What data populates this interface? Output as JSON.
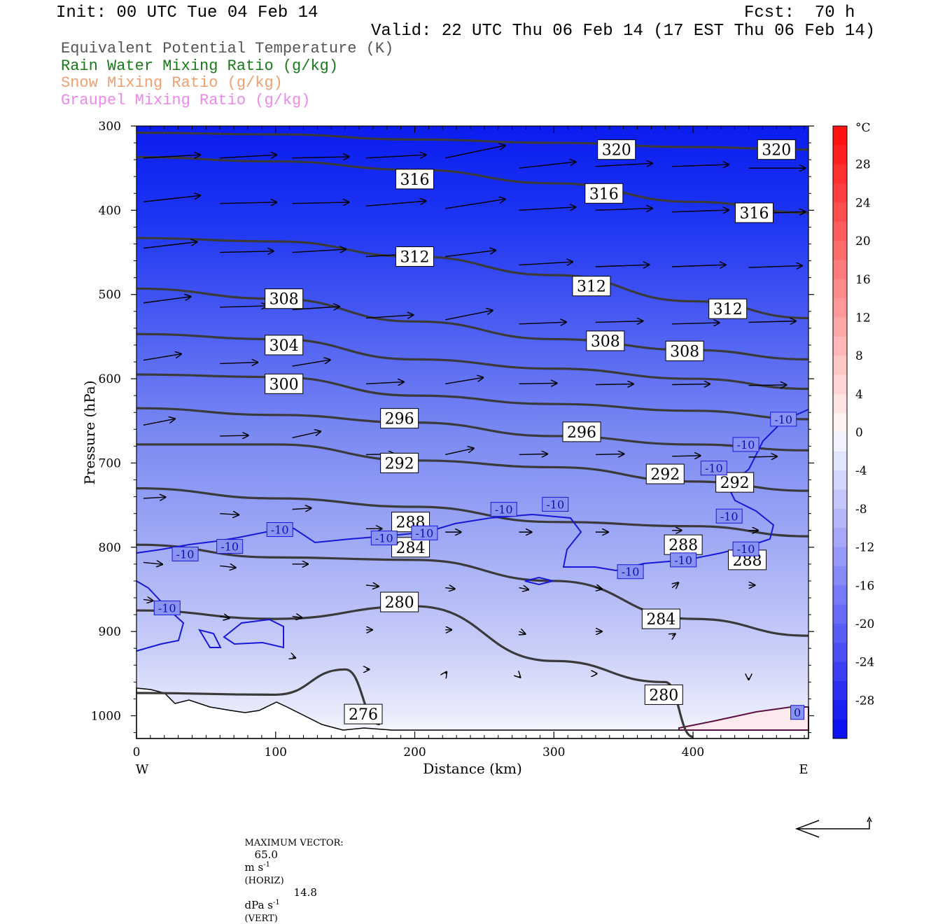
{
  "header": {
    "init": "Init: 00 UTC Tue 04 Feb 14",
    "fcst": "Fcst:  70 h",
    "valid": "Valid: 22 UTC Thu 06 Feb 14 (17 EST Thu 06 Feb 14)"
  },
  "fields": [
    {
      "label": "Equivalent Potential Temperature (K)",
      "color": "#555555"
    },
    {
      "label": "Rain Water Mixing Ratio (g/kg)",
      "color": "#1a7a1a"
    },
    {
      "label": "Snow Mixing Ratio (g/kg)",
      "color": "#f0a070"
    },
    {
      "label": "Graupel Mixing Ratio (g/kg)",
      "color": "#ee88ee"
    }
  ],
  "chart_data": {
    "type": "cross-section",
    "xlabel": "Distance (km)",
    "ylabel": "Pressure (hPa)",
    "xlim": [
      0,
      483
    ],
    "ylim": [
      300,
      1027
    ],
    "x_ticks": [
      0,
      100,
      200,
      300,
      400
    ],
    "y_ticks": [
      300,
      400,
      500,
      600,
      700,
      800,
      900,
      1000
    ],
    "x_end_labels": {
      "left": "W",
      "right": "E"
    },
    "colorbar": {
      "unit": "°C",
      "ticks": [
        28,
        24,
        20,
        16,
        12,
        8,
        4,
        0,
        -4,
        -8,
        -12,
        -16,
        -20,
        -24,
        -28
      ],
      "range": [
        -32,
        32
      ]
    },
    "theta_e_contours": [
      {
        "value": 320,
        "points": [
          [
            0,
            308
          ],
          [
            100,
            310
          ],
          [
            200,
            316
          ],
          [
            300,
            320
          ],
          [
            400,
            325
          ],
          [
            483,
            328
          ]
        ]
      },
      {
        "value": 316,
        "points": [
          [
            0,
            337
          ],
          [
            100,
            342
          ],
          [
            200,
            352
          ],
          [
            300,
            368
          ],
          [
            400,
            390
          ],
          [
            483,
            403
          ]
        ]
      },
      {
        "value": 312,
        "points": [
          [
            0,
            433
          ],
          [
            100,
            437
          ],
          [
            200,
            455
          ],
          [
            300,
            477
          ],
          [
            400,
            508
          ],
          [
            483,
            528
          ]
        ]
      },
      {
        "value": 308,
        "points": [
          [
            0,
            493
          ],
          [
            100,
            505
          ],
          [
            200,
            532
          ],
          [
            300,
            553
          ],
          [
            400,
            566
          ],
          [
            483,
            577
          ]
        ]
      },
      {
        "value": 304,
        "points": [
          [
            0,
            547
          ],
          [
            100,
            553
          ],
          [
            200,
            577
          ],
          [
            300,
            588
          ],
          [
            400,
            600
          ],
          [
            483,
            612
          ]
        ]
      },
      {
        "value": 300,
        "points": [
          [
            0,
            595
          ],
          [
            100,
            598
          ],
          [
            200,
            620
          ],
          [
            300,
            630
          ],
          [
            400,
            638
          ],
          [
            483,
            648
          ]
        ]
      },
      {
        "value": 296,
        "points": [
          [
            0,
            635
          ],
          [
            100,
            643
          ],
          [
            200,
            652
          ],
          [
            300,
            668
          ],
          [
            400,
            678
          ],
          [
            483,
            685
          ]
        ]
      },
      {
        "value": 292,
        "points": [
          [
            0,
            678
          ],
          [
            100,
            678
          ],
          [
            200,
            697
          ],
          [
            300,
            705
          ],
          [
            400,
            722
          ],
          [
            483,
            733
          ]
        ]
      },
      {
        "value": 288,
        "points": [
          [
            0,
            730
          ],
          [
            100,
            742
          ],
          [
            200,
            752
          ],
          [
            300,
            770
          ],
          [
            400,
            775
          ],
          [
            483,
            787
          ]
        ]
      },
      {
        "value": 284,
        "points": [
          [
            0,
            797
          ],
          [
            100,
            812
          ],
          [
            200,
            815
          ],
          [
            300,
            840
          ],
          [
            400,
            885
          ],
          [
            483,
            905
          ]
        ]
      },
      {
        "value": 280,
        "points": [
          [
            0,
            875
          ],
          [
            100,
            885
          ],
          [
            200,
            870
          ],
          [
            300,
            935
          ],
          [
            380,
            960
          ],
          [
            400,
            1025
          ]
        ]
      },
      {
        "value": 276,
        "points": [
          [
            0,
            973
          ],
          [
            100,
            975
          ],
          [
            150,
            945
          ],
          [
            175,
            1010
          ]
        ]
      }
    ],
    "theta_e_labels": [
      {
        "text": "320",
        "x": 345,
        "p": 328
      },
      {
        "text": "320",
        "x": 460,
        "p": 328
      },
      {
        "text": "316",
        "x": 200,
        "p": 363
      },
      {
        "text": "316",
        "x": 336,
        "p": 380
      },
      {
        "text": "316",
        "x": 444,
        "p": 403
      },
      {
        "text": "312",
        "x": 200,
        "p": 455
      },
      {
        "text": "312",
        "x": 327,
        "p": 490
      },
      {
        "text": "312",
        "x": 425,
        "p": 517
      },
      {
        "text": "308",
        "x": 106,
        "p": 505
      },
      {
        "text": "308",
        "x": 337,
        "p": 555
      },
      {
        "text": "308",
        "x": 394,
        "p": 567
      },
      {
        "text": "304",
        "x": 106,
        "p": 560
      },
      {
        "text": "300",
        "x": 106,
        "p": 606
      },
      {
        "text": "296",
        "x": 189,
        "p": 647
      },
      {
        "text": "296",
        "x": 320,
        "p": 663
      },
      {
        "text": "292",
        "x": 189,
        "p": 700
      },
      {
        "text": "292",
        "x": 380,
        "p": 713
      },
      {
        "text": "292",
        "x": 430,
        "p": 723
      },
      {
        "text": "288",
        "x": 197,
        "p": 770
      },
      {
        "text": "288",
        "x": 393,
        "p": 797
      },
      {
        "text": "288",
        "x": 439,
        "p": 815
      },
      {
        "text": "284",
        "x": 197,
        "p": 800
      },
      {
        "text": "284",
        "x": 377,
        "p": 885
      },
      {
        "text": "280",
        "x": 189,
        "p": 865
      },
      {
        "text": "280",
        "x": 379,
        "p": 975
      },
      {
        "text": "276",
        "x": 163,
        "p": 998
      }
    ],
    "temperature_contour_labels": [
      {
        "text": "-10",
        "x": 35,
        "p": 808
      },
      {
        "text": "-10",
        "x": 67,
        "p": 799
      },
      {
        "text": "-10",
        "x": 103,
        "p": 779
      },
      {
        "text": "-10",
        "x": 178,
        "p": 789
      },
      {
        "text": "-10",
        "x": 207,
        "p": 783
      },
      {
        "text": "-10",
        "x": 264,
        "p": 755
      },
      {
        "text": "-10",
        "x": 301,
        "p": 749
      },
      {
        "text": "-10",
        "x": 355,
        "p": 829
      },
      {
        "text": "-10",
        "x": 393,
        "p": 815
      },
      {
        "text": "-10",
        "x": 415,
        "p": 706
      },
      {
        "text": "-10",
        "x": 426,
        "p": 763
      },
      {
        "text": "-10",
        "x": 438,
        "p": 802
      },
      {
        "text": "-10",
        "x": 438,
        "p": 678
      },
      {
        "text": "-10",
        "x": 465,
        "p": 648
      },
      {
        "text": "-10",
        "x": 22,
        "p": 872
      },
      {
        "text": "0",
        "x": 475,
        "p": 996
      }
    ],
    "wind_vectors": [
      {
        "x": 5,
        "p": 338,
        "u": 0.9,
        "v": 0.05
      },
      {
        "x": 60,
        "p": 338,
        "u": 0.9,
        "v": 0.05
      },
      {
        "x": 112,
        "p": 338,
        "u": 0.9,
        "v": 0.02
      },
      {
        "x": 165,
        "p": 338,
        "u": 0.95,
        "v": 0.05
      },
      {
        "x": 222,
        "p": 338,
        "u": 0.95,
        "v": 0.2
      },
      {
        "x": 275,
        "p": 350,
        "u": 0.9,
        "v": 0.1
      },
      {
        "x": 330,
        "p": 348,
        "u": 0.9,
        "v": 0.05
      },
      {
        "x": 385,
        "p": 348,
        "u": 0.9,
        "v": 0.03
      },
      {
        "x": 440,
        "p": 350,
        "u": 0.9,
        "v": 0.0
      },
      {
        "x": 5,
        "p": 390,
        "u": 0.9,
        "v": 0.1
      },
      {
        "x": 60,
        "p": 392,
        "u": 0.9,
        "v": 0.02
      },
      {
        "x": 112,
        "p": 392,
        "u": 0.9,
        "v": 0.02
      },
      {
        "x": 165,
        "p": 395,
        "u": 0.95,
        "v": 0.08
      },
      {
        "x": 222,
        "p": 398,
        "u": 0.95,
        "v": 0.15
      },
      {
        "x": 275,
        "p": 400,
        "u": 0.9,
        "v": 0.05
      },
      {
        "x": 330,
        "p": 400,
        "u": 0.9,
        "v": 0.03
      },
      {
        "x": 385,
        "p": 402,
        "u": 0.9,
        "v": 0.03
      },
      {
        "x": 440,
        "p": 404,
        "u": 0.9,
        "v": 0.03
      },
      {
        "x": 5,
        "p": 445,
        "u": 0.85,
        "v": 0.1
      },
      {
        "x": 60,
        "p": 450,
        "u": 0.85,
        "v": 0.02
      },
      {
        "x": 112,
        "p": 450,
        "u": 0.85,
        "v": 0.05
      },
      {
        "x": 165,
        "p": 455,
        "u": 0.85,
        "v": 0.05
      },
      {
        "x": 222,
        "p": 455,
        "u": 0.8,
        "v": 0.1
      },
      {
        "x": 275,
        "p": 465,
        "u": 0.85,
        "v": 0.05
      },
      {
        "x": 330,
        "p": 467,
        "u": 0.85,
        "v": 0.03
      },
      {
        "x": 385,
        "p": 467,
        "u": 0.85,
        "v": 0.03
      },
      {
        "x": 440,
        "p": 468,
        "u": 0.85,
        "v": 0.03
      },
      {
        "x": 5,
        "p": 510,
        "u": 0.75,
        "v": 0.1
      },
      {
        "x": 60,
        "p": 515,
        "u": 0.75,
        "v": 0.02
      },
      {
        "x": 112,
        "p": 518,
        "u": 0.75,
        "v": 0.05
      },
      {
        "x": 165,
        "p": 528,
        "u": 0.75,
        "v": 0.05
      },
      {
        "x": 222,
        "p": 530,
        "u": 0.75,
        "v": 0.15
      },
      {
        "x": 275,
        "p": 535,
        "u": 0.75,
        "v": 0.03
      },
      {
        "x": 330,
        "p": 533,
        "u": 0.75,
        "v": 0.02
      },
      {
        "x": 385,
        "p": 535,
        "u": 0.75,
        "v": 0.02
      },
      {
        "x": 440,
        "p": 533,
        "u": 0.75,
        "v": 0.02
      },
      {
        "x": 5,
        "p": 578,
        "u": 0.6,
        "v": 0.1
      },
      {
        "x": 60,
        "p": 582,
        "u": 0.6,
        "v": 0.02
      },
      {
        "x": 112,
        "p": 585,
        "u": 0.6,
        "v": 0.1
      },
      {
        "x": 165,
        "p": 606,
        "u": 0.6,
        "v": 0.03
      },
      {
        "x": 222,
        "p": 606,
        "u": 0.6,
        "v": 0.1
      },
      {
        "x": 275,
        "p": 606,
        "u": 0.6,
        "v": 0.01
      },
      {
        "x": 330,
        "p": 607,
        "u": 0.6,
        "v": 0.01
      },
      {
        "x": 385,
        "p": 607,
        "u": 0.6,
        "v": 0.01
      },
      {
        "x": 440,
        "p": 608,
        "u": 0.6,
        "v": 0.01
      },
      {
        "x": 5,
        "p": 655,
        "u": 0.5,
        "v": 0.1
      },
      {
        "x": 60,
        "p": 668,
        "u": 0.45,
        "v": 0.01
      },
      {
        "x": 112,
        "p": 670,
        "u": 0.45,
        "v": 0.1
      },
      {
        "x": 165,
        "p": 690,
        "u": 0.45,
        "v": 0.01
      },
      {
        "x": 222,
        "p": 690,
        "u": 0.45,
        "v": 0.1
      },
      {
        "x": 275,
        "p": 690,
        "u": 0.45,
        "v": 0.01
      },
      {
        "x": 330,
        "p": 690,
        "u": 0.45,
        "v": 0.01
      },
      {
        "x": 385,
        "p": 692,
        "u": 0.45,
        "v": 0.01
      },
      {
        "x": 440,
        "p": 693,
        "u": 0.45,
        "v": 0.01
      },
      {
        "x": 5,
        "p": 742,
        "u": 0.35,
        "v": 0.02
      },
      {
        "x": 60,
        "p": 760,
        "u": 0.3,
        "v": -0.02
      },
      {
        "x": 112,
        "p": 755,
        "u": 0.3,
        "v": 0.02
      },
      {
        "x": 165,
        "p": 778,
        "u": 0.25,
        "v": 0.0
      },
      {
        "x": 222,
        "p": 782,
        "u": 0.25,
        "v": 0.0
      },
      {
        "x": 275,
        "p": 782,
        "u": 0.2,
        "v": 0.0
      },
      {
        "x": 330,
        "p": 782,
        "u": 0.2,
        "v": 0.0
      },
      {
        "x": 385,
        "p": 780,
        "u": 0.15,
        "v": 0.0
      },
      {
        "x": 440,
        "p": 780,
        "u": 0.15,
        "v": 0.0
      },
      {
        "x": 5,
        "p": 818,
        "u": 0.3,
        "v": -0.03
      },
      {
        "x": 60,
        "p": 822,
        "u": 0.25,
        "v": -0.03
      },
      {
        "x": 112,
        "p": 820,
        "u": 0.25,
        "v": 0.0
      },
      {
        "x": 165,
        "p": 845,
        "u": 0.2,
        "v": -0.02
      },
      {
        "x": 222,
        "p": 848,
        "u": 0.15,
        "v": -0.02
      },
      {
        "x": 275,
        "p": 848,
        "u": 0.15,
        "v": -0.03
      },
      {
        "x": 330,
        "p": 848,
        "u": 0.1,
        "v": -0.02
      },
      {
        "x": 385,
        "p": 848,
        "u": 0.1,
        "v": 0.08
      },
      {
        "x": 440,
        "p": 845,
        "u": 0.1,
        "v": 0.0
      },
      {
        "x": 5,
        "p": 862,
        "u": 0.15,
        "v": -0.02
      },
      {
        "x": 60,
        "p": 882,
        "u": 0.15,
        "v": -0.03
      },
      {
        "x": 112,
        "p": 882,
        "u": 0.15,
        "v": -0.02
      },
      {
        "x": 165,
        "p": 898,
        "u": 0.1,
        "v": 0.0
      },
      {
        "x": 222,
        "p": 898,
        "u": 0.1,
        "v": 0.0
      },
      {
        "x": 275,
        "p": 900,
        "u": 0.1,
        "v": -0.04
      },
      {
        "x": 330,
        "p": 900,
        "u": 0.1,
        "v": 0.0
      },
      {
        "x": 385,
        "p": 905,
        "u": 0.05,
        "v": 0.03
      },
      {
        "x": 112,
        "p": 930,
        "u": 0.05,
        "v": -0.02
      },
      {
        "x": 165,
        "p": 945,
        "u": 0.05,
        "v": 0.0
      },
      {
        "x": 222,
        "p": 950,
        "u": 0.02,
        "v": 0.03
      },
      {
        "x": 275,
        "p": 953,
        "u": 0.02,
        "v": -0.02
      },
      {
        "x": 330,
        "p": 950,
        "u": 0.02,
        "v": 0.0
      },
      {
        "x": 440,
        "p": 955,
        "u": 0.0,
        "v": -0.03
      }
    ],
    "max_vector": {
      "label": "MAXIMUM VECTOR:",
      "horiz_value": "65.0",
      "horiz_unit": "m s",
      "horiz_exp": "-1",
      "horiz_tag": "(HORIZ)",
      "vert_value": "14.8",
      "vert_unit": "dPa s",
      "vert_exp": "-1",
      "vert_tag": "(VERT)"
    }
  }
}
